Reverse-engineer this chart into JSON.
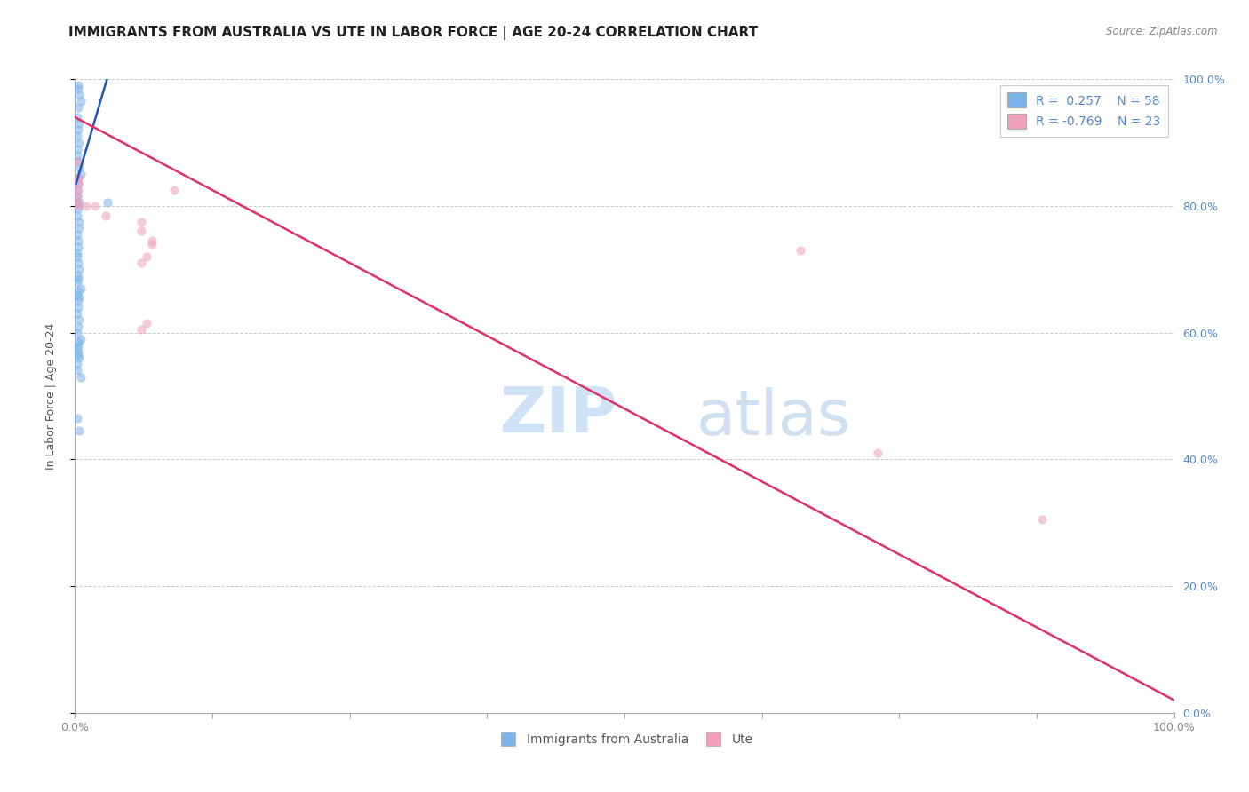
{
  "title": "IMMIGRANTS FROM AUSTRALIA VS UTE IN LABOR FORCE | AGE 20-24 CORRELATION CHART",
  "source": "Source: ZipAtlas.com",
  "ylabel": "In Labor Force | Age 20-24",
  "legend_entries": [
    {
      "label": "Immigrants from Australia",
      "R": "0.257",
      "N": "58"
    },
    {
      "label": "Ute",
      "R": "-0.769",
      "N": "23"
    }
  ],
  "background_color": "#ffffff",
  "grid_color": "#cccccc",
  "xlim": [
    0.0,
    1.0
  ],
  "ylim": [
    0.0,
    1.0
  ],
  "xticks": [
    0.0,
    0.125,
    0.25,
    0.375,
    0.5,
    0.625,
    0.75,
    0.875,
    1.0
  ],
  "xticklabels_show": [
    "0.0%",
    "",
    "",
    "",
    "",
    "",
    "",
    "",
    "100.0%"
  ],
  "yticks_left": [],
  "yticks_right": [
    0.0,
    0.2,
    0.4,
    0.6,
    0.8,
    1.0
  ],
  "yticklabels_right": [
    "0.0%",
    "20.0%",
    "40.0%",
    "60.0%",
    "80.0%",
    "100.0%"
  ],
  "blue_scatter_x": [
    0.003,
    0.004,
    0.005,
    0.003,
    0.002,
    0.004,
    0.003,
    0.002,
    0.004,
    0.002,
    0.002,
    0.003,
    0.004,
    0.005,
    0.003,
    0.003,
    0.002,
    0.002,
    0.001,
    0.004,
    0.003,
    0.002,
    0.004,
    0.003,
    0.004,
    0.002,
    0.003,
    0.003,
    0.002,
    0.002,
    0.003,
    0.004,
    0.003,
    0.002,
    0.005,
    0.002,
    0.003,
    0.003,
    0.002,
    0.004,
    0.003,
    0.002,
    0.005,
    0.003,
    0.003,
    0.004,
    0.002,
    0.002,
    0.005,
    0.003,
    0.003,
    0.004,
    0.003,
    0.002,
    0.003,
    0.03,
    0.002,
    0.004
  ],
  "blue_scatter_y": [
    0.99,
    0.975,
    0.965,
    0.955,
    0.94,
    0.93,
    0.92,
    0.91,
    0.9,
    0.89,
    0.88,
    0.87,
    0.86,
    0.85,
    0.845,
    0.835,
    0.825,
    0.815,
    0.805,
    0.805,
    0.795,
    0.785,
    0.775,
    0.985,
    0.765,
    0.755,
    0.745,
    0.735,
    0.725,
    0.72,
    0.71,
    0.7,
    0.69,
    0.68,
    0.67,
    0.66,
    0.65,
    0.64,
    0.63,
    0.62,
    0.61,
    0.6,
    0.59,
    0.58,
    0.57,
    0.56,
    0.55,
    0.54,
    0.53,
    0.685,
    0.665,
    0.655,
    0.585,
    0.575,
    0.565,
    0.805,
    0.465,
    0.445
  ],
  "pink_scatter_x": [
    0.002,
    0.003,
    0.002,
    0.003,
    0.003,
    0.002,
    0.003,
    0.003,
    0.01,
    0.018,
    0.028,
    0.09,
    0.06,
    0.06,
    0.07,
    0.07,
    0.065,
    0.06,
    0.66,
    0.73,
    0.88,
    0.06,
    0.065
  ],
  "pink_scatter_y": [
    0.87,
    0.845,
    0.84,
    0.835,
    0.825,
    0.815,
    0.805,
    0.8,
    0.8,
    0.8,
    0.785,
    0.825,
    0.775,
    0.76,
    0.745,
    0.74,
    0.72,
    0.71,
    0.73,
    0.41,
    0.305,
    0.605,
    0.615
  ],
  "blue_line_x": [
    0.001,
    0.03
  ],
  "blue_line_y": [
    0.835,
    1.005
  ],
  "pink_line_x": [
    0.0,
    1.0
  ],
  "pink_line_y": [
    0.94,
    0.02
  ],
  "title_fontsize": 11,
  "axis_fontsize": 9,
  "tick_fontsize": 9,
  "legend_fontsize": 10,
  "dot_size": 55,
  "dot_alpha": 0.55,
  "blue_color": "#7ab4e8",
  "pink_color": "#f0a0b8",
  "blue_line_color": "#2255bb",
  "pink_line_color": "#dd3366",
  "right_ytick_color": "#5588cc",
  "watermark_zip_color": "#c8dff5",
  "watermark_atlas_color": "#b0cce8"
}
